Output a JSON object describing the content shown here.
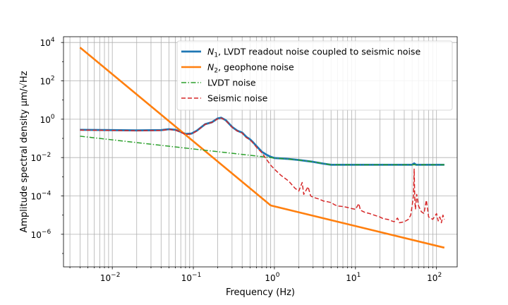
{
  "chart_data": {
    "type": "line",
    "xscale": "log",
    "yscale": "log",
    "xlim": [
      0.0025,
      180
    ],
    "ylim": [
      2e-08,
      20000
    ],
    "xlabel": "Frequency (Hz)",
    "ylabel": "Amplitude spectral density μm/√Hz",
    "xticks": [
      {
        "value": 0.01,
        "label": "10",
        "exp": "−2"
      },
      {
        "value": 0.1,
        "label": "10",
        "exp": "−1"
      },
      {
        "value": 1,
        "label": "10",
        "exp": "0"
      },
      {
        "value": 10,
        "label": "10",
        "exp": "1"
      },
      {
        "value": 100,
        "label": "10",
        "exp": "2"
      }
    ],
    "yticks": [
      {
        "value": 1e-06,
        "label": "10",
        "exp": "−6"
      },
      {
        "value": 0.0001,
        "label": "10",
        "exp": "−4"
      },
      {
        "value": 0.01,
        "label": "10",
        "exp": "−2"
      },
      {
        "value": 1,
        "label": "10",
        "exp": "0"
      },
      {
        "value": 100,
        "label": "10",
        "exp": "2"
      },
      {
        "value": 10000,
        "label": "10",
        "exp": "4"
      }
    ],
    "grid": true,
    "legend_position": "top-right",
    "series": [
      {
        "name": "N1, LVDT readout noise coupled to seismic noise",
        "legend_main": "N",
        "legend_sub": "1",
        "legend_rest": ", LVDT readout noise coupled to seismic noise",
        "color": "#1f77b4",
        "style": "solid",
        "width": 2.8,
        "points": [
          [
            0.004,
            0.28
          ],
          [
            0.01,
            0.27
          ],
          [
            0.02,
            0.26
          ],
          [
            0.04,
            0.27
          ],
          [
            0.05,
            0.3
          ],
          [
            0.06,
            0.28
          ],
          [
            0.07,
            0.22
          ],
          [
            0.08,
            0.17
          ],
          [
            0.095,
            0.18
          ],
          [
            0.11,
            0.25
          ],
          [
            0.14,
            0.55
          ],
          [
            0.17,
            0.7
          ],
          [
            0.2,
            1.1
          ],
          [
            0.22,
            1.2
          ],
          [
            0.25,
            0.9
          ],
          [
            0.3,
            0.4
          ],
          [
            0.35,
            0.25
          ],
          [
            0.4,
            0.2
          ],
          [
            0.45,
            0.12
          ],
          [
            0.5,
            0.09
          ],
          [
            0.55,
            0.06
          ],
          [
            0.6,
            0.04
          ],
          [
            0.7,
            0.02
          ],
          [
            0.8,
            0.014
          ],
          [
            0.9,
            0.011
          ],
          [
            1,
            0.0095
          ],
          [
            1.5,
            0.0085
          ],
          [
            2,
            0.0075
          ],
          [
            3,
            0.006
          ],
          [
            4,
            0.0048
          ],
          [
            5,
            0.0042
          ],
          [
            10,
            0.0042
          ],
          [
            30,
            0.0042
          ],
          [
            50,
            0.0042
          ],
          [
            53,
            0.005
          ],
          [
            56,
            0.0042
          ],
          [
            125,
            0.0042
          ]
        ]
      },
      {
        "name": "N2, geophone noise",
        "legend_main": "N",
        "legend_sub": "2",
        "legend_rest": ", geophone noise",
        "color": "#ff7f0e",
        "style": "solid",
        "width": 2.6,
        "points": [
          [
            0.004,
            5500
          ],
          [
            0.9,
            3.2e-05
          ],
          [
            125,
            2e-07
          ]
        ]
      },
      {
        "name": "LVDT noise",
        "legend_main": "LVDT noise",
        "legend_sub": "",
        "legend_rest": "",
        "color": "#2ca02c",
        "style": "dashdot",
        "width": 1.5,
        "points": [
          [
            0.004,
            0.13
          ],
          [
            0.1,
            0.028
          ],
          [
            0.9,
            0.01
          ],
          [
            1,
            0.0095
          ],
          [
            2,
            0.0075
          ],
          [
            3,
            0.006
          ],
          [
            5,
            0.0042
          ],
          [
            125,
            0.0042
          ]
        ]
      },
      {
        "name": "Seismic noise",
        "legend_main": "Seismic noise",
        "legend_sub": "",
        "legend_rest": "",
        "color": "#d62728",
        "style": "dashed",
        "width": 1.5,
        "points": [
          [
            0.004,
            0.27
          ],
          [
            0.01,
            0.26
          ],
          [
            0.02,
            0.25
          ],
          [
            0.04,
            0.26
          ],
          [
            0.05,
            0.29
          ],
          [
            0.06,
            0.27
          ],
          [
            0.07,
            0.21
          ],
          [
            0.08,
            0.16
          ],
          [
            0.095,
            0.17
          ],
          [
            0.11,
            0.24
          ],
          [
            0.14,
            0.54
          ],
          [
            0.17,
            0.68
          ],
          [
            0.2,
            1.05
          ],
          [
            0.22,
            1.15
          ],
          [
            0.25,
            0.88
          ],
          [
            0.3,
            0.38
          ],
          [
            0.35,
            0.24
          ],
          [
            0.4,
            0.19
          ],
          [
            0.45,
            0.11
          ],
          [
            0.5,
            0.085
          ],
          [
            0.55,
            0.055
          ],
          [
            0.6,
            0.035
          ],
          [
            0.7,
            0.018
          ],
          [
            0.8,
            0.008
          ],
          [
            0.9,
            0.004
          ],
          [
            1,
            0.0025
          ],
          [
            1.2,
            0.0012
          ],
          [
            1.5,
            0.0006
          ],
          [
            1.8,
            0.00025
          ],
          [
            2,
            0.00018
          ],
          [
            2.2,
            0.0005
          ],
          [
            2.3,
            0.00012
          ],
          [
            2.6,
            0.0003
          ],
          [
            2.8,
            0.0001
          ],
          [
            3,
            8.5e-05
          ],
          [
            3.5,
            7e-05
          ],
          [
            4,
            5.5e-05
          ],
          [
            4.5,
            5e-05
          ],
          [
            5,
            4.5e-05
          ],
          [
            5.5,
            3.5e-05
          ],
          [
            6,
            3e-05
          ],
          [
            7,
            2.8e-05
          ],
          [
            8,
            2.5e-05
          ],
          [
            9,
            2.2e-05
          ],
          [
            10,
            2e-05
          ],
          [
            11,
            4e-05
          ],
          [
            11.5,
            1.8e-05
          ],
          [
            13,
            1.4e-05
          ],
          [
            15,
            1.2e-05
          ],
          [
            17,
            1e-05
          ],
          [
            20,
            8e-06
          ],
          [
            22,
            6.5e-06
          ],
          [
            25,
            6e-06
          ],
          [
            28,
            5e-06
          ],
          [
            30,
            4.5e-06
          ],
          [
            33,
            7e-06
          ],
          [
            35,
            4e-06
          ],
          [
            40,
            4.5e-06
          ],
          [
            45,
            6e-06
          ],
          [
            48,
            1e-05
          ],
          [
            50,
            3e-05
          ],
          [
            52,
            0.0001
          ],
          [
            53,
            0.0025
          ],
          [
            54,
            6e-05
          ],
          [
            55,
            2e-05
          ],
          [
            57,
            0.00012
          ],
          [
            60,
            3e-05
          ],
          [
            65,
            1.5e-05
          ],
          [
            70,
            1.2e-05
          ],
          [
            75,
            6e-05
          ],
          [
            80,
            8e-06
          ],
          [
            90,
            6e-06
          ],
          [
            100,
            1.2e-05
          ],
          [
            105,
            5e-06
          ],
          [
            110,
            8e-06
          ],
          [
            115,
            4e-06
          ],
          [
            120,
            1e-05
          ],
          [
            125,
            6e-06
          ]
        ]
      }
    ]
  }
}
